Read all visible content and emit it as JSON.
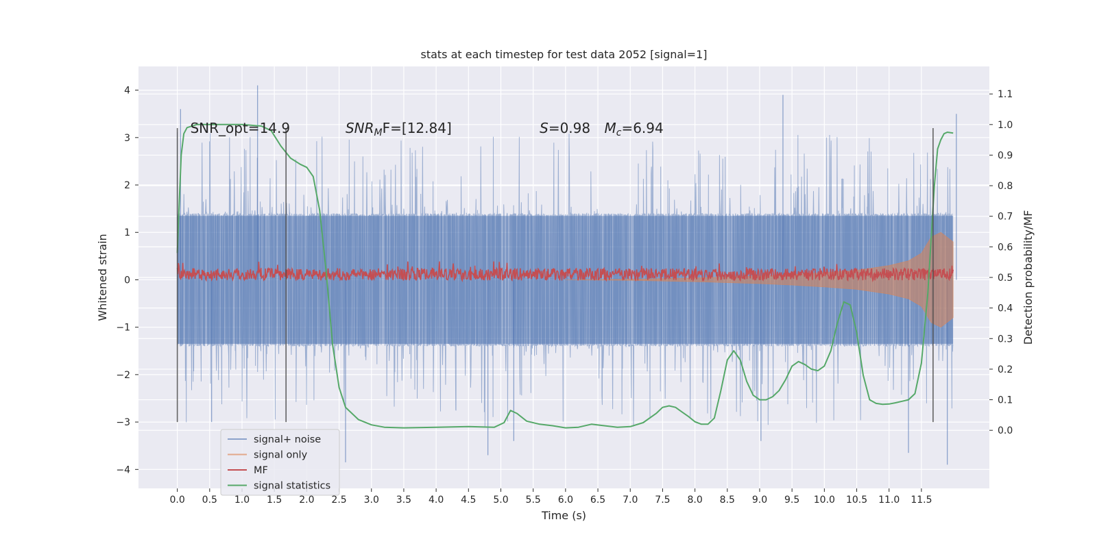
{
  "chart_data": {
    "type": "line",
    "title": "stats at each timestep for test data 2052 [signal=1]",
    "xlabel": "Time (s)",
    "ylabel": "Whitened strain",
    "y2label": "Detection probability/MF",
    "xlim": [
      -0.6,
      12.55
    ],
    "ylim": [
      -4.4,
      4.5
    ],
    "y2lim": [
      -0.19,
      1.19
    ],
    "x_ticks": [
      0.0,
      0.5,
      1.0,
      1.5,
      2.0,
      2.5,
      3.0,
      3.5,
      4.0,
      4.5,
      5.0,
      5.5,
      6.0,
      6.5,
      7.0,
      7.5,
      8.0,
      8.5,
      9.0,
      9.5,
      10.0,
      10.5,
      11.0,
      11.5
    ],
    "x_tick_labels": [
      "0.0",
      "0.5",
      "1.0",
      "1.5",
      "2.0",
      "2.5",
      "3.0",
      "3.5",
      "4.0",
      "4.5",
      "5.0",
      "5.5",
      "6.0",
      "6.5",
      "7.0",
      "7.5",
      "8.0",
      "8.5",
      "9.0",
      "9.5",
      "10.0",
      "10.5",
      "11.0",
      "11.5"
    ],
    "y_ticks": [
      -4,
      -3,
      -2,
      -1,
      0,
      1,
      2,
      3,
      4
    ],
    "y_tick_labels": [
      "−4",
      "−3",
      "−2",
      "−1",
      "0",
      "1",
      "2",
      "3",
      "4"
    ],
    "y2_ticks": [
      0.0,
      0.1,
      0.2,
      0.3,
      0.4,
      0.5,
      0.6,
      0.7,
      0.8,
      0.9,
      1.0,
      1.1
    ],
    "y2_tick_labels": [
      "0.0",
      "0.1",
      "0.2",
      "0.3",
      "0.4",
      "0.5",
      "0.6",
      "0.7",
      "0.8",
      "0.9",
      "1.0",
      "1.1"
    ],
    "grid": true,
    "legend_position": "lower-left",
    "annotations": [
      {
        "text": "SNR_opt=14.9",
        "x": 0.2,
        "y": 3.2
      },
      {
        "text": "SNR",
        "sub": "M",
        "rest": "F=[12.84]",
        "italic": true,
        "x": 2.6,
        "y": 3.2
      },
      {
        "text": "S",
        "rest": "=0.98",
        "italic": true,
        "x": 5.6,
        "y": 3.2
      },
      {
        "text": "M",
        "sub": "c",
        "rest": "=6.94",
        "italic": true,
        "x": 6.6,
        "y": 3.2
      }
    ],
    "vertical_markers": [
      {
        "x": 0.0,
        "y": [
          -3.0,
          3.2
        ]
      },
      {
        "x": 1.68,
        "y": [
          -3.0,
          3.2
        ]
      },
      {
        "x": 11.68,
        "y": [
          -3.0,
          3.2
        ]
      }
    ],
    "series": [
      {
        "name": "signal+ noise",
        "kind": "noise",
        "axis": "left",
        "color": "#4c72b0",
        "x_range": [
          0.0,
          11.99
        ],
        "core_amplitude": [
          -1.35,
          1.35
        ],
        "spikes": [
          {
            "x": 0.05,
            "y": 3.6
          },
          {
            "x": 1.24,
            "y": 4.1
          },
          {
            "x": 9.36,
            "y": 3.9
          },
          {
            "x": 12.04,
            "y": 3.5
          },
          {
            "x": 2.6,
            "y": -3.85
          },
          {
            "x": 4.8,
            "y": -3.7
          },
          {
            "x": 11.9,
            "y": -3.9
          },
          {
            "x": 11.3,
            "y": -3.65
          },
          {
            "x": 9.02,
            "y": -3.4
          },
          {
            "x": 5.2,
            "y": -3.4
          },
          {
            "x": 0.53,
            "y": -3.0
          }
        ]
      },
      {
        "name": "signal only",
        "kind": "chirp",
        "axis": "left",
        "color": "#dd8452",
        "x": [
          6.0,
          7.0,
          8.0,
          9.0,
          9.5,
          10.0,
          10.5,
          11.0,
          11.3,
          11.5,
          11.65,
          11.8,
          11.99
        ],
        "envelope": [
          0.0,
          0.01,
          0.04,
          0.08,
          0.11,
          0.15,
          0.2,
          0.3,
          0.4,
          0.56,
          0.9,
          1.0,
          0.8
        ]
      },
      {
        "name": "MF",
        "kind": "mf",
        "axis": "right",
        "color": "#c44e52",
        "x_range": [
          0.0,
          11.99
        ],
        "baseline": 0.51,
        "fluctuation": 0.02
      },
      {
        "name": "signal statistics",
        "kind": "line",
        "axis": "right",
        "color": "#55a868",
        "x": [
          0.0,
          0.03,
          0.06,
          0.1,
          0.15,
          0.3,
          0.6,
          1.0,
          1.3,
          1.45,
          1.6,
          1.75,
          1.9,
          2.0,
          2.1,
          2.2,
          2.3,
          2.4,
          2.5,
          2.6,
          2.8,
          3.0,
          3.2,
          3.5,
          4.0,
          4.5,
          4.9,
          5.05,
          5.15,
          5.25,
          5.4,
          5.6,
          5.8,
          6.0,
          6.2,
          6.4,
          6.6,
          6.8,
          7.0,
          7.2,
          7.4,
          7.5,
          7.6,
          7.7,
          7.8,
          7.9,
          8.0,
          8.1,
          8.2,
          8.3,
          8.4,
          8.5,
          8.6,
          8.7,
          8.8,
          8.9,
          9.0,
          9.1,
          9.2,
          9.3,
          9.4,
          9.5,
          9.6,
          9.7,
          9.8,
          9.9,
          10.0,
          10.1,
          10.2,
          10.3,
          10.4,
          10.5,
          10.6,
          10.7,
          10.8,
          10.9,
          11.0,
          11.1,
          11.2,
          11.3,
          11.4,
          11.5,
          11.6,
          11.7,
          11.75,
          11.8,
          11.85,
          11.9,
          11.99
        ],
        "y": [
          0.58,
          0.75,
          0.9,
          0.97,
          0.99,
          1.0,
          1.0,
          1.0,
          0.995,
          0.98,
          0.93,
          0.89,
          0.87,
          0.86,
          0.83,
          0.72,
          0.52,
          0.28,
          0.14,
          0.075,
          0.035,
          0.018,
          0.01,
          0.008,
          0.01,
          0.012,
          0.01,
          0.025,
          0.065,
          0.055,
          0.03,
          0.02,
          0.015,
          0.008,
          0.01,
          0.02,
          0.015,
          0.01,
          0.012,
          0.025,
          0.055,
          0.075,
          0.08,
          0.075,
          0.06,
          0.045,
          0.028,
          0.02,
          0.02,
          0.04,
          0.13,
          0.23,
          0.26,
          0.23,
          0.16,
          0.115,
          0.1,
          0.1,
          0.11,
          0.13,
          0.165,
          0.21,
          0.225,
          0.215,
          0.2,
          0.195,
          0.21,
          0.26,
          0.35,
          0.42,
          0.41,
          0.32,
          0.18,
          0.1,
          0.088,
          0.085,
          0.086,
          0.09,
          0.095,
          0.1,
          0.12,
          0.22,
          0.45,
          0.8,
          0.92,
          0.95,
          0.97,
          0.975,
          0.972
        ]
      }
    ]
  }
}
